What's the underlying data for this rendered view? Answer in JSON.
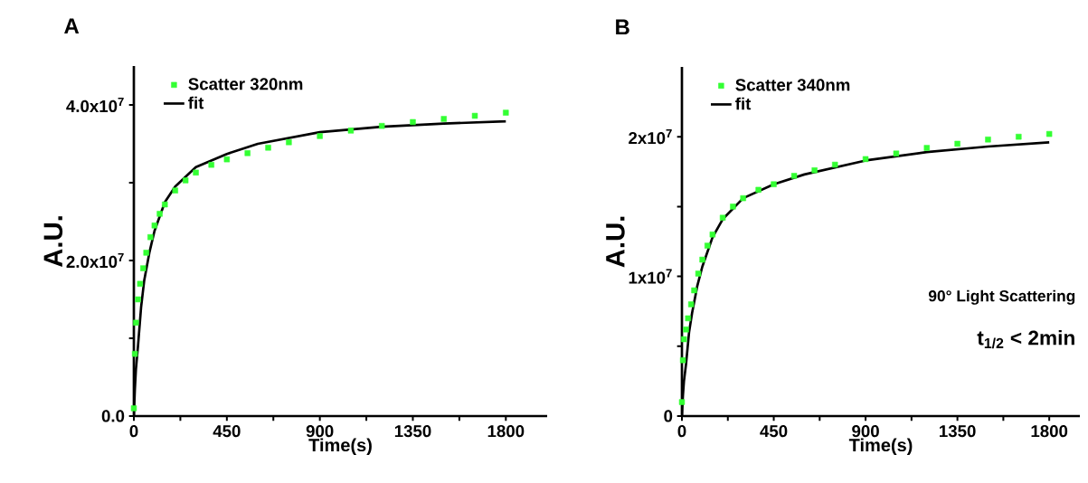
{
  "chart_data": [
    {
      "type": "scatter",
      "title": "A",
      "xlabel": "Time(s)",
      "ylabel": "A.U.",
      "xlim": [
        0,
        2000
      ],
      "ylim": [
        0,
        45000000.0
      ],
      "xticks": [
        0,
        {
          "value": 225,
          "label": null
        },
        450,
        {
          "value": 675,
          "label": null
        },
        900,
        {
          "value": 1125,
          "label": null
        },
        1350,
        {
          "value": 1575,
          "label": null
        },
        1800
      ],
      "yticks": [
        {
          "value": 0,
          "label": "0.0"
        },
        {
          "value": 10000000.0,
          "label": null
        },
        {
          "value": 20000000.0,
          "label": "2.0x10$^{7}$"
        },
        {
          "value": 30000000.0,
          "label": null
        },
        {
          "value": 40000000.0,
          "label": "4.0x10$^{7}$"
        }
      ],
      "legend": "top left",
      "series": [
        {
          "name": "Scatter 320nm",
          "marker": "square",
          "color": "#33ff33",
          "x": [
            0,
            5,
            10,
            20,
            30,
            45,
            60,
            80,
            100,
            125,
            150,
            200,
            250,
            300,
            375,
            450,
            550,
            650,
            750,
            900,
            1050,
            1200,
            1350,
            1500,
            1650,
            1800
          ],
          "values": [
            1000000.0,
            8000000.0,
            12000000.0,
            15000000.0,
            17000000.0,
            19000000.0,
            21000000.0,
            23000000.0,
            24500000.0,
            26000000.0,
            27200000.0,
            29000000.0,
            30300000.0,
            31300000.0,
            32300000.0,
            33000000.0,
            33800000.0,
            34500000.0,
            35200000.0,
            36000000.0,
            36700000.0,
            37300000.0,
            37800000.0,
            38200000.0,
            38600000.0,
            39000000.0
          ]
        },
        {
          "name": "fit",
          "type": "line",
          "color": "#000000",
          "x": [
            0,
            5,
            10,
            20,
            35,
            50,
            75,
            100,
            150,
            200,
            300,
            450,
            600,
            900,
            1200,
            1500,
            1800
          ],
          "values": [
            0,
            3500000.0,
            6000000.0,
            9000000.0,
            14000000.0,
            17400000.0,
            21000000.0,
            23800000.0,
            27500000.0,
            29500000.0,
            32000000.0,
            33700000.0,
            35000000.0,
            36500000.0,
            37200000.0,
            37600000.0,
            37900000.0
          ]
        }
      ]
    },
    {
      "type": "scatter",
      "title": "B",
      "xlabel": "Time(s)",
      "ylabel": "A.U.",
      "xlim": [
        0,
        1950
      ],
      "ylim": [
        0,
        25000000.0
      ],
      "xticks": [
        0,
        {
          "value": 225,
          "label": null
        },
        450,
        {
          "value": 675,
          "label": null
        },
        900,
        {
          "value": 1125,
          "label": null
        },
        1350,
        {
          "value": 1575,
          "label": null
        },
        1800
      ],
      "yticks": [
        0,
        {
          "value": 5000000.0,
          "label": null
        },
        {
          "value": 10000000.0,
          "label": "1x10$^{7}$"
        },
        {
          "value": 15000000.0,
          "label": null
        },
        {
          "value": 20000000.0,
          "label": "2x10$^{7}$"
        }
      ],
      "legend": "top left",
      "annotations": [
        "90° Light Scattering",
        "t$_{1/2}$ < 2min"
      ],
      "series": [
        {
          "name": "Scatter 340nm",
          "marker": "square",
          "color": "#33ff33",
          "x": [
            0,
            5,
            10,
            20,
            30,
            45,
            60,
            80,
            100,
            125,
            150,
            200,
            250,
            300,
            375,
            450,
            550,
            650,
            750,
            900,
            1050,
            1200,
            1350,
            1500,
            1650,
            1800
          ],
          "values": [
            1000000.0,
            4000000.0,
            5500000.0,
            6200000.0,
            7000000.0,
            8000000.0,
            9000000.0,
            10200000.0,
            11200000.0,
            12200000.0,
            13000000.0,
            14200000.0,
            15000000.0,
            15600000.0,
            16200000.0,
            16600000.0,
            17200000.0,
            17600000.0,
            18000000.0,
            18400000.0,
            18800000.0,
            19200000.0,
            19500000.0,
            19800000.0,
            20000000.0,
            20200000.0
          ]
        },
        {
          "name": "fit",
          "type": "line",
          "color": "#000000",
          "x": [
            0,
            5,
            10,
            20,
            35,
            50,
            75,
            100,
            150,
            200,
            300,
            450,
            600,
            900,
            1200,
            1500,
            1800
          ],
          "values": [
            0,
            1500000.0,
            2500000.0,
            3700000.0,
            6000000.0,
            7400000.0,
            9300000.0,
            10700000.0,
            12800000.0,
            14100000.0,
            15600000.0,
            16600000.0,
            17300000.0,
            18300000.0,
            18900000.0,
            19300000.0,
            19600000.0
          ]
        }
      ]
    }
  ]
}
